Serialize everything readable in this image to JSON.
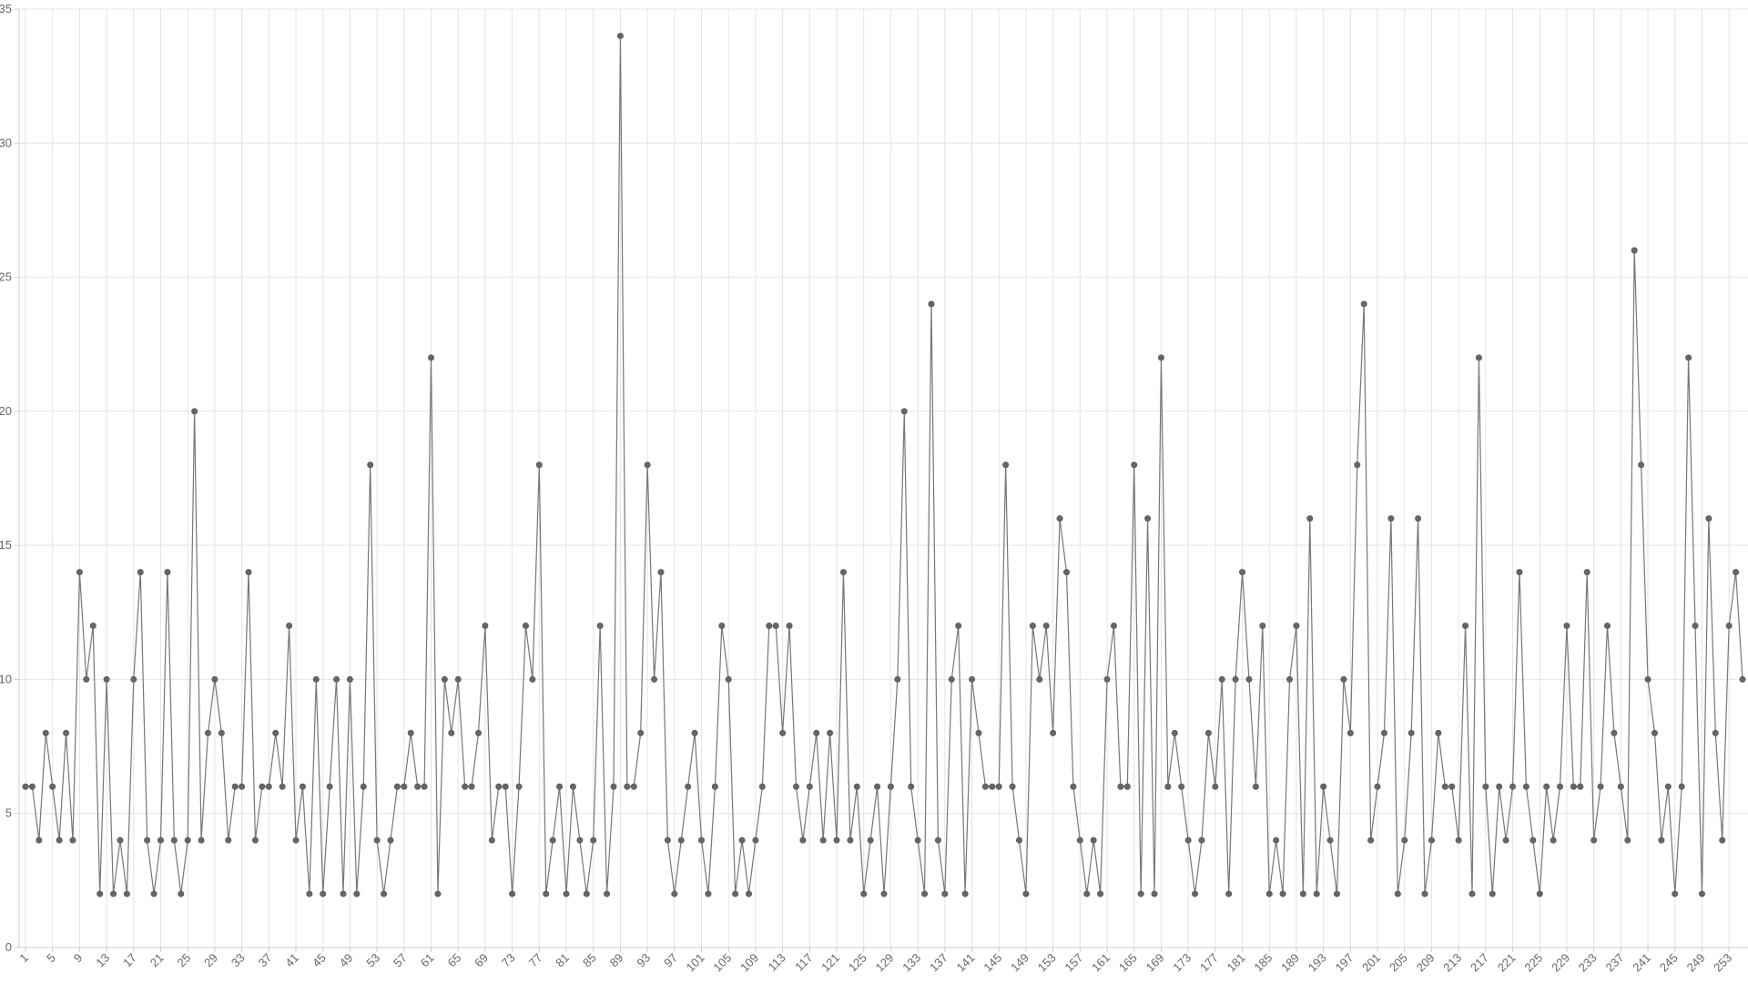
{
  "chart_data": {
    "type": "line",
    "categories": [
      1,
      null,
      null,
      null,
      5,
      null,
      null,
      null,
      9,
      null,
      null,
      null,
      13,
      null,
      null,
      null,
      17,
      null,
      null,
      null,
      21,
      null,
      null,
      null,
      25,
      null,
      null,
      null,
      29,
      null,
      null,
      null,
      33,
      null,
      null,
      null,
      37,
      null,
      null,
      null,
      41,
      null,
      null,
      null,
      45,
      null,
      null,
      null,
      49,
      null,
      null,
      null,
      53,
      null,
      null,
      null,
      57,
      null,
      null,
      null,
      61,
      null,
      null,
      null,
      65,
      null,
      null,
      null,
      69,
      null,
      null,
      null,
      73,
      null,
      null,
      null,
      77,
      null,
      null,
      null,
      81,
      null,
      null,
      null,
      85,
      null,
      null,
      null,
      89,
      null,
      null,
      null,
      93,
      null,
      null,
      null,
      97,
      null,
      null,
      null,
      101,
      null,
      null,
      null,
      105,
      null,
      null,
      null,
      109,
      null,
      null,
      null,
      113,
      null,
      null,
      null,
      117,
      null,
      null,
      null,
      121,
      null,
      null,
      null,
      125,
      null,
      null,
      null,
      129,
      null,
      null,
      null,
      133,
      null,
      null,
      null,
      137,
      null,
      null,
      null,
      141,
      null,
      null,
      null,
      145,
      null,
      null,
      null,
      149,
      null,
      null,
      null,
      153,
      null,
      null,
      null,
      157,
      null,
      null,
      null,
      161,
      null,
      null,
      null,
      165,
      null,
      null,
      null,
      169,
      null,
      null,
      null,
      173,
      null,
      null,
      null,
      177,
      null,
      null,
      null,
      181,
      null,
      null,
      null,
      185,
      null,
      null,
      null,
      189,
      null,
      null,
      null,
      193,
      null,
      null,
      null,
      197,
      null,
      null,
      null,
      201,
      null,
      null,
      null,
      205,
      null,
      null,
      null,
      209,
      null,
      null,
      null,
      213,
      null,
      null,
      null,
      217,
      null,
      null,
      null,
      221,
      null,
      null,
      null,
      225,
      null,
      null,
      null,
      229,
      null,
      null,
      null,
      233,
      null,
      null,
      null,
      237,
      null,
      null,
      null,
      241,
      null,
      null,
      null,
      245,
      null,
      null,
      null,
      249,
      null,
      null,
      null,
      253,
      null,
      null
    ],
    "series": [
      {
        "color": "#777777",
        "values": [
          6,
          6,
          4,
          8,
          6,
          4,
          8,
          4,
          14,
          10,
          12,
          2,
          10,
          2,
          4,
          2,
          10,
          14,
          4,
          2,
          4,
          14,
          4,
          2,
          4,
          20,
          4,
          8,
          10,
          8,
          4,
          6,
          6,
          14,
          4,
          6,
          6,
          8,
          6,
          12,
          4,
          6,
          2,
          10,
          2,
          6,
          10,
          2,
          10,
          2,
          6,
          18,
          4,
          2,
          4,
          6,
          6,
          8,
          6,
          6,
          22,
          2,
          10,
          8,
          10,
          6,
          6,
          8,
          12,
          4,
          6,
          6,
          2,
          6,
          12,
          10,
          18,
          2,
          4,
          6,
          2,
          6,
          4,
          2,
          4,
          12,
          2,
          6,
          34,
          6,
          6,
          8,
          18,
          10,
          14,
          4,
          2,
          4,
          6,
          8,
          4,
          2,
          6,
          12,
          10,
          2,
          4,
          2,
          4,
          6,
          12,
          12,
          8,
          12,
          6,
          4,
          6,
          8,
          4,
          8,
          4,
          14,
          4,
          6,
          2,
          4,
          6,
          2,
          6,
          10,
          20,
          6,
          4,
          2,
          24,
          4,
          2,
          10,
          12,
          2,
          10,
          8,
          6,
          6,
          6,
          18,
          6,
          4,
          2,
          12,
          10,
          12,
          8,
          16,
          14,
          6,
          4,
          2,
          4,
          2,
          10,
          12,
          6,
          6,
          18,
          2,
          16,
          2,
          22,
          6,
          8,
          6,
          4,
          2,
          4,
          8,
          6,
          10,
          2,
          10,
          14,
          10,
          6,
          12,
          2,
          4,
          2,
          10,
          12,
          2,
          16,
          2,
          6,
          4,
          2,
          10,
          8,
          18,
          24,
          4,
          6,
          8,
          16,
          2,
          4,
          8,
          16,
          2,
          4,
          8,
          6,
          6,
          4,
          12,
          2,
          22,
          6,
          2,
          6,
          4,
          6,
          14,
          6,
          4,
          2,
          6,
          4,
          6,
          12,
          6,
          6,
          14,
          4,
          6,
          12,
          8,
          6,
          4,
          26,
          18,
          10,
          8,
          4,
          6,
          2,
          6,
          22,
          12,
          2,
          16,
          8,
          4,
          12,
          14,
          10
        ]
      }
    ],
    "ylim": [
      0,
      35
    ],
    "yticks": [
      0,
      5,
      10,
      15,
      20,
      25,
      30,
      35
    ],
    "grid": true
  }
}
